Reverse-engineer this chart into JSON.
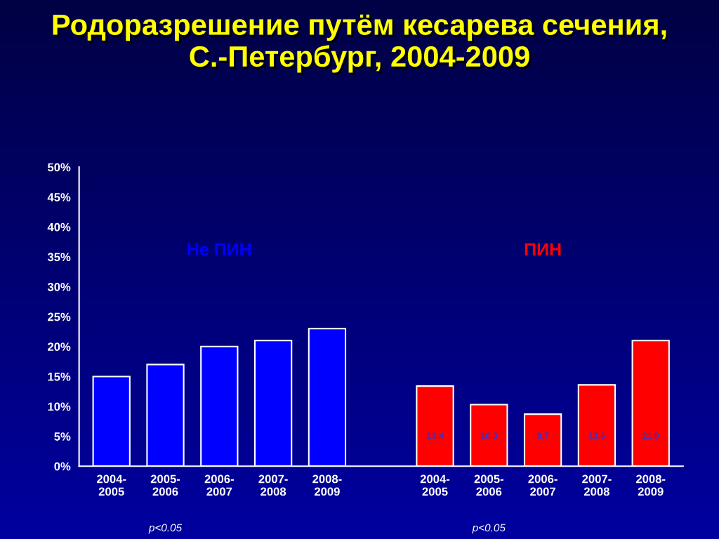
{
  "chart_data": {
    "type": "bar",
    "title": "Родоразрешение путём кесарева сечения,\nС.-Петербург, 2004-2009",
    "categories": [
      "2004-\n2005",
      "2005-\n2006",
      "2006-\n2007",
      "2007-\n2008",
      "2008-\n2009",
      null,
      "2004-\n2005",
      "2005-\n2006",
      "2006-\n2007",
      "2007-\n2008",
      "2008-\n2009"
    ],
    "series": [
      {
        "name": "Не ПИН",
        "color": "#0000ff",
        "values": [
          15,
          17,
          20,
          21,
          23,
          null,
          null,
          null,
          null,
          null,
          null
        ]
      },
      {
        "name": "ПИН",
        "color": "#ff0000",
        "values": [
          null,
          null,
          null,
          null,
          null,
          null,
          13.4,
          10.3,
          8.7,
          13.6,
          21.0
        ],
        "value_labels": [
          null,
          null,
          null,
          null,
          null,
          null,
          "13.4",
          "10.3",
          "8.7",
          "13.6",
          "21.0"
        ]
      }
    ],
    "ylim": [
      0,
      50
    ],
    "yticks": [
      {
        "value": 0,
        "label": "0%"
      },
      {
        "value": 5,
        "label": "5%"
      },
      {
        "value": 10,
        "label": "10%"
      },
      {
        "value": 15,
        "label": "15%"
      },
      {
        "value": 20,
        "label": "20%"
      },
      {
        "value": 25,
        "label": "25%"
      },
      {
        "value": 30,
        "label": "30%"
      },
      {
        "value": 35,
        "label": "35%"
      },
      {
        "value": 40,
        "label": "40%"
      },
      {
        "value": 45,
        "label": "45%"
      },
      {
        "value": 50,
        "label": "50%"
      }
    ],
    "annotations": [
      "p<0.05",
      "p<0.05"
    ],
    "grid": false,
    "legend": false
  }
}
